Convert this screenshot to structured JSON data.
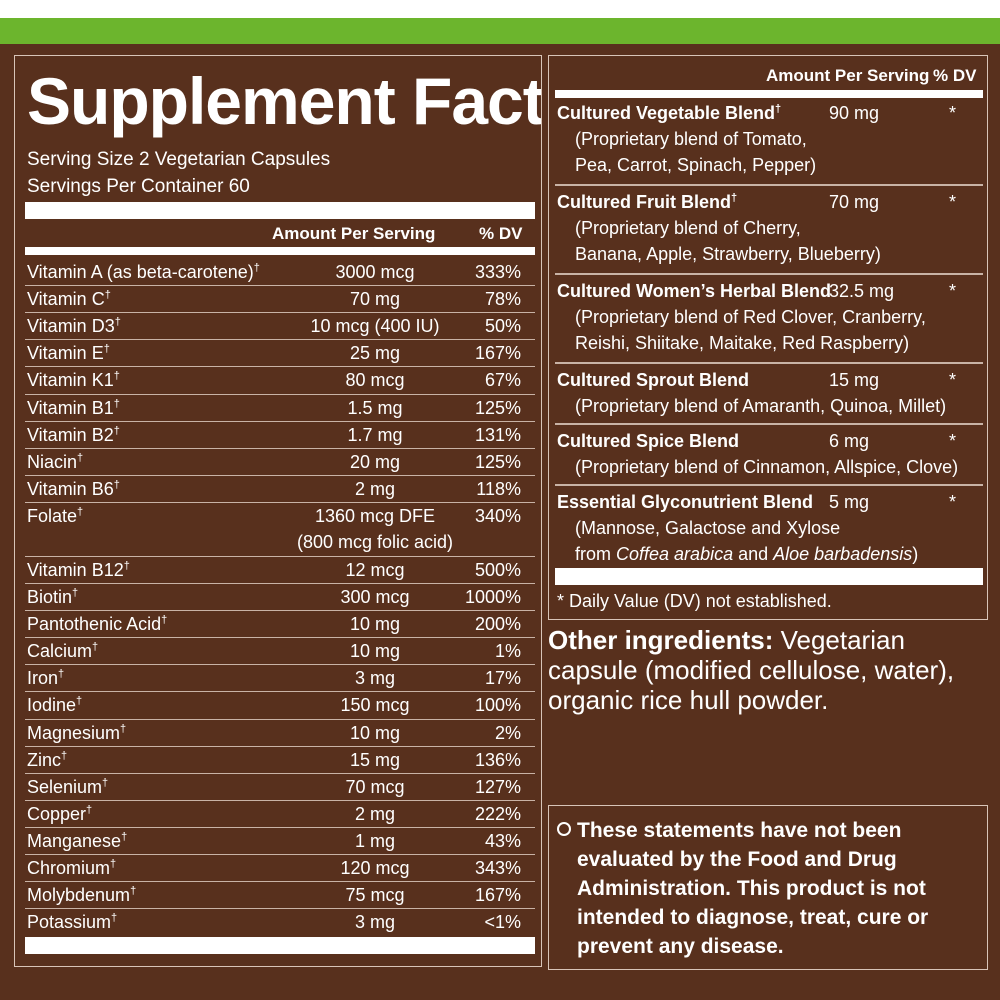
{
  "title": "Supplement Facts",
  "serving_size": "Serving Size 2 Vegetarian Capsules",
  "servings_per_container": "Servings Per Container 60",
  "header": {
    "amount": "Amount Per Serving",
    "dv": "% DV"
  },
  "nutrients": [
    {
      "name": "Vitamin A (as beta-carotene)",
      "mark": "†",
      "amount": "3000 mcg",
      "dv": "333%"
    },
    {
      "name": "Vitamin C",
      "mark": "†",
      "amount": "70 mg",
      "dv": "78%"
    },
    {
      "name": "Vitamin D3",
      "mark": "†",
      "amount": "10 mcg (400 IU)",
      "dv": "50%"
    },
    {
      "name": "Vitamin E",
      "mark": "†",
      "amount": "25 mg",
      "dv": "167%"
    },
    {
      "name": "Vitamin K1",
      "mark": "†",
      "amount": "80 mcg",
      "dv": "67%"
    },
    {
      "name": "Vitamin B1",
      "mark": "†",
      "amount": "1.5 mg",
      "dv": "125%"
    },
    {
      "name": "Vitamin B2",
      "mark": "†",
      "amount": "1.7 mg",
      "dv": "131%"
    },
    {
      "name": "Niacin",
      "mark": "†",
      "amount": "20 mg",
      "dv": "125%"
    },
    {
      "name": "Vitamin B6",
      "mark": "†",
      "amount": "2 mg",
      "dv": "118%"
    },
    {
      "name": "Folate",
      "mark": "†",
      "amount": "1360 mcg DFE",
      "amount2": "(800 mcg folic acid)",
      "dv": "340%"
    },
    {
      "name": "Vitamin B12",
      "mark": "†",
      "amount": "12 mcg",
      "dv": "500%"
    },
    {
      "name": "Biotin",
      "mark": "†",
      "amount": "300 mcg",
      "dv": "1000%"
    },
    {
      "name": "Pantothenic Acid",
      "mark": "†",
      "amount": "10 mg",
      "dv": "200%"
    },
    {
      "name": "Calcium",
      "mark": "†",
      "amount": "10 mg",
      "dv": "1%"
    },
    {
      "name": "Iron",
      "mark": "†",
      "amount": "3 mg",
      "dv": "17%"
    },
    {
      "name": "Iodine",
      "mark": "†",
      "amount": "150 mcg",
      "dv": "100%"
    },
    {
      "name": "Magnesium",
      "mark": "†",
      "amount": "10 mg",
      "dv": "2%"
    },
    {
      "name": "Zinc",
      "mark": "†",
      "amount": "15 mg",
      "dv": "136%"
    },
    {
      "name": "Selenium",
      "mark": "†",
      "amount": "70 mcg",
      "dv": "127%"
    },
    {
      "name": "Copper",
      "mark": "†",
      "amount": "2 mg",
      "dv": "222%"
    },
    {
      "name": "Manganese",
      "mark": "†",
      "amount": "1 mg",
      "dv": "43%"
    },
    {
      "name": "Chromium",
      "mark": "†",
      "amount": "120 mcg",
      "dv": "343%"
    },
    {
      "name": "Molybdenum",
      "mark": "†",
      "amount": "75 mcg",
      "dv": "167%"
    },
    {
      "name": "Potassium",
      "mark": "†",
      "amount": "3 mg",
      "dv": "<1%"
    }
  ],
  "blends": [
    {
      "name": "Cultured Vegetable Blend",
      "mark": "†",
      "amount": "90 mg",
      "dv": "*",
      "desc1": "(Proprietary blend of Tomato,",
      "desc2": "Pea, Carrot, Spinach, Pepper)"
    },
    {
      "name": "Cultured Fruit Blend",
      "mark": "†",
      "amount": "70 mg",
      "dv": "*",
      "desc1": "(Proprietary blend of Cherry,",
      "desc2": "Banana, Apple, Strawberry, Blueberry)"
    },
    {
      "name": "Cultured Women’s Herbal Blend",
      "mark": "",
      "amount": "32.5 mg",
      "dv": "*",
      "desc1": "(Proprietary blend of Red Clover, Cranberry,",
      "desc2": "Reishi, Shiitake, Maitake, Red Raspberry)"
    },
    {
      "name": "Cultured Sprout Blend",
      "mark": "",
      "amount": "15 mg",
      "dv": "*",
      "desc1": "(Proprietary blend of Amaranth, Quinoa, Millet)"
    },
    {
      "name": "Cultured Spice Blend",
      "mark": "",
      "amount": "6 mg",
      "dv": "*",
      "desc1": "(Proprietary blend of Cinnamon, Allspice, Clove)"
    },
    {
      "name": "Essential Glyconutrient Blend",
      "mark": "",
      "amount": "5 mg",
      "dv": "*",
      "desc1": "(Mannose, Galactose and Xylose",
      "desc2_a": "from ",
      "desc2_i1": "Coffea arabica",
      "desc2_b": " and ",
      "desc2_i2": "Aloe barbadensis",
      "desc2_c": ")"
    }
  ],
  "dv_note": "* Daily Value (DV) not established.",
  "other_ingredients": {
    "label": "Other ingredients:",
    "text": " Vegetarian capsule (modified cellulose, water), organic rice hull powder."
  },
  "fda_statement": "These statements have not been evaluated by the Food and Drug Administration. This product is not intended to diagnose, treat, cure or prevent any disease."
}
